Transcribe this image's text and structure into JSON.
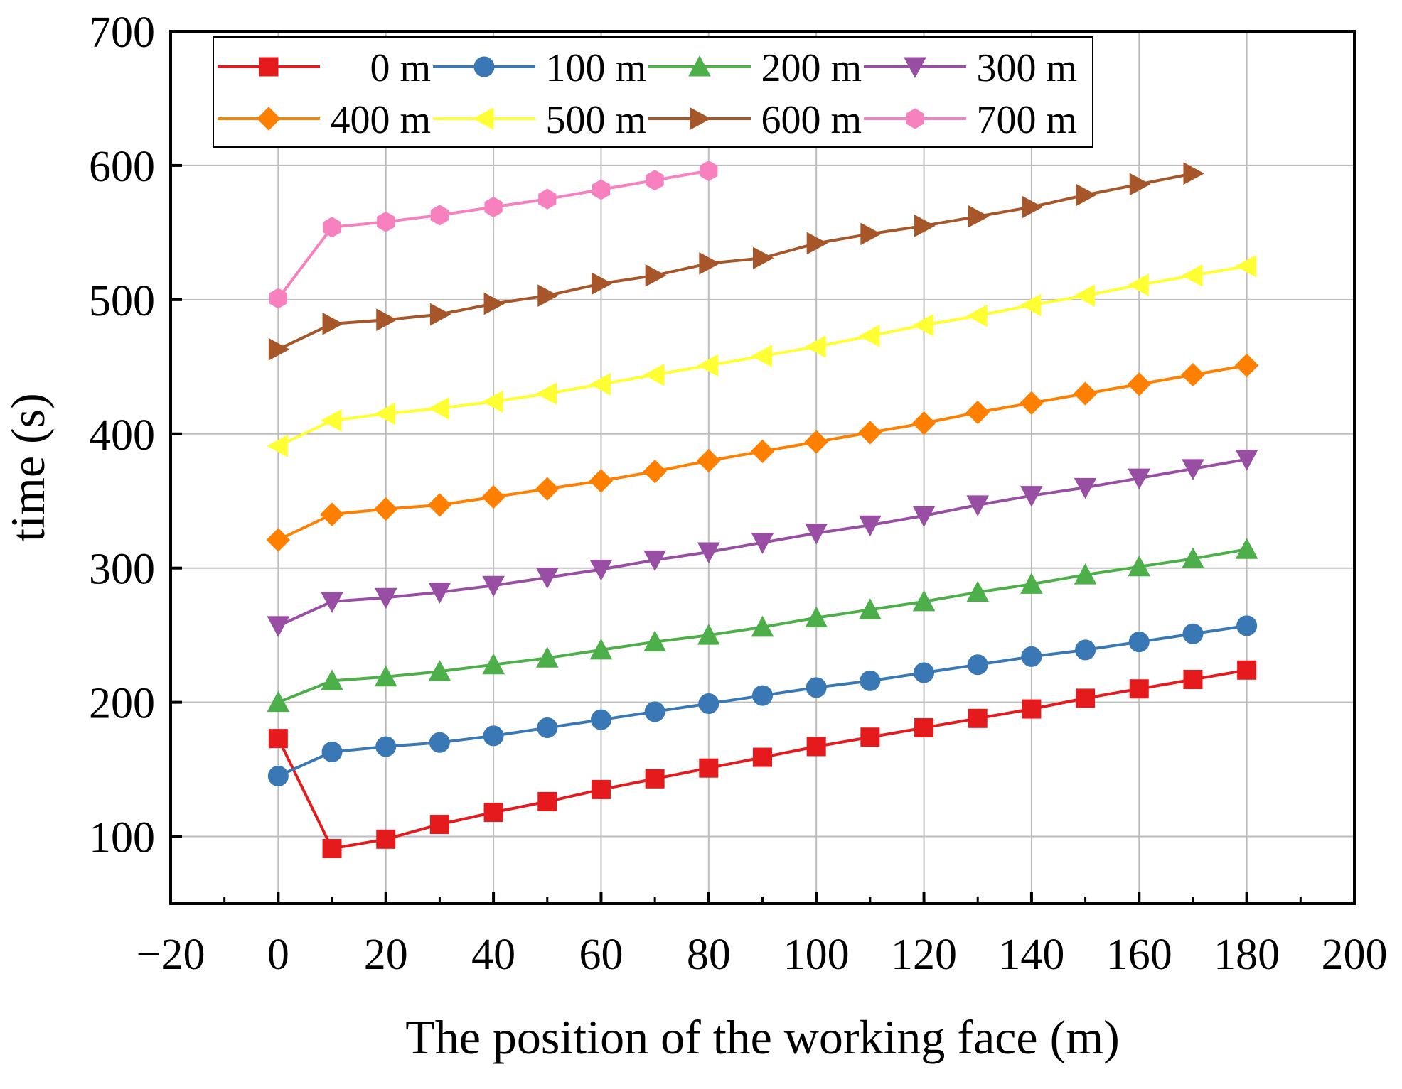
{
  "chart_data": {
    "type": "line",
    "title": "",
    "xlabel": "The position of the working face (m)",
    "ylabel": "time (s)",
    "xlim": [
      -20,
      200
    ],
    "ylim": [
      50,
      700
    ],
    "xticks": [
      -20,
      0,
      20,
      40,
      60,
      80,
      100,
      120,
      140,
      160,
      180,
      200
    ],
    "xtick_labels": [
      "−20",
      "0",
      "20",
      "40",
      "60",
      "80",
      "100",
      "120",
      "140",
      "160",
      "180",
      "200"
    ],
    "yticks": [
      100,
      200,
      300,
      400,
      500,
      600,
      700
    ],
    "ytick_labels": [
      "100",
      "200",
      "300",
      "400",
      "500",
      "600",
      "700"
    ],
    "grid": true,
    "legend_position": "top-left",
    "series": [
      {
        "name": "0 m",
        "color": "#e41a1c",
        "marker": "square",
        "x": [
          0,
          10,
          20,
          30,
          40,
          50,
          60,
          70,
          80,
          90,
          100,
          110,
          120,
          130,
          140,
          150,
          160,
          170,
          180
        ],
        "values": [
          173,
          91,
          98,
          109,
          118,
          126,
          135,
          143,
          151,
          159,
          167,
          174,
          181,
          188,
          195,
          203,
          210,
          217,
          224
        ]
      },
      {
        "name": "100 m",
        "color": "#3a78b5",
        "marker": "circle",
        "x": [
          0,
          10,
          20,
          30,
          40,
          50,
          60,
          70,
          80,
          90,
          100,
          110,
          120,
          130,
          140,
          150,
          160,
          170,
          180
        ],
        "values": [
          145,
          163,
          167,
          170,
          175,
          181,
          187,
          193,
          199,
          205,
          211,
          216,
          222,
          228,
          234,
          239,
          245,
          251,
          257
        ]
      },
      {
        "name": "200 m",
        "color": "#4daf4a",
        "marker": "triangle-up",
        "x": [
          0,
          10,
          20,
          30,
          40,
          50,
          60,
          70,
          80,
          90,
          100,
          110,
          120,
          130,
          140,
          150,
          160,
          170,
          180
        ],
        "values": [
          200,
          216,
          219,
          223,
          228,
          233,
          239,
          245,
          250,
          256,
          263,
          269,
          275,
          282,
          288,
          295,
          301,
          307,
          314
        ]
      },
      {
        "name": "300 m",
        "color": "#984ea3",
        "marker": "triangle-down",
        "x": [
          0,
          10,
          20,
          30,
          40,
          50,
          60,
          70,
          80,
          90,
          100,
          110,
          120,
          130,
          140,
          150,
          160,
          170,
          180
        ],
        "values": [
          257,
          275,
          278,
          282,
          287,
          293,
          299,
          306,
          312,
          319,
          326,
          332,
          339,
          347,
          354,
          360,
          367,
          374,
          381
        ]
      },
      {
        "name": "400 m",
        "color": "#ff7f00",
        "marker": "diamond",
        "x": [
          0,
          10,
          20,
          30,
          40,
          50,
          60,
          70,
          80,
          90,
          100,
          110,
          120,
          130,
          140,
          150,
          160,
          170,
          180
        ],
        "values": [
          321,
          340,
          344,
          347,
          353,
          359,
          365,
          372,
          380,
          387,
          394,
          401,
          408,
          416,
          423,
          430,
          437,
          444,
          451
        ]
      },
      {
        "name": "500 m",
        "color": "#ffff33",
        "marker": "triangle-left",
        "x": [
          0,
          10,
          20,
          30,
          40,
          50,
          60,
          70,
          80,
          90,
          100,
          110,
          120,
          130,
          140,
          150,
          160,
          170,
          180
        ],
        "values": [
          391,
          410,
          415,
          419,
          424,
          430,
          437,
          444,
          451,
          458,
          465,
          473,
          481,
          488,
          496,
          503,
          511,
          518,
          525
        ]
      },
      {
        "name": "600 m",
        "color": "#a65628",
        "marker": "triangle-right",
        "x": [
          0,
          10,
          20,
          30,
          40,
          50,
          60,
          70,
          80,
          90,
          100,
          110,
          120,
          130,
          140,
          150,
          160,
          170
        ],
        "values": [
          463,
          482,
          485,
          489,
          497,
          503,
          512,
          518,
          527,
          531,
          542,
          549,
          555,
          562,
          569,
          578,
          586,
          594
        ]
      },
      {
        "name": "700 m",
        "color": "#f781bf",
        "marker": "hexagon",
        "x": [
          0,
          10,
          20,
          30,
          40,
          50,
          60,
          70,
          80
        ],
        "values": [
          501,
          554,
          558,
          563,
          569,
          575,
          582,
          589,
          596
        ]
      }
    ]
  }
}
